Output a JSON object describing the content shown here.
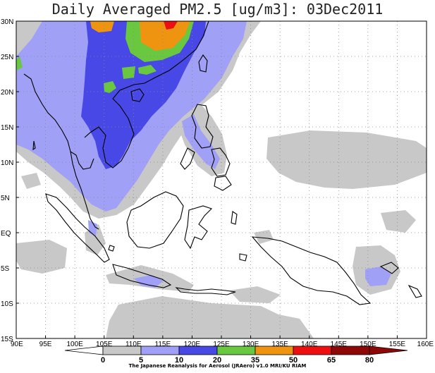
{
  "title": "Daily Averaged PM2.5 [ug/m3]: 03Dec2011",
  "lat_labels": [
    "30N",
    "25N",
    "20N",
    "15N",
    "10N",
    "5N",
    "EQ",
    "5S",
    "10S",
    "15S"
  ],
  "lon_labels": [
    "90E",
    "95E",
    "100E",
    "105E",
    "110E",
    "115E",
    "120E",
    "125E",
    "130E",
    "135E",
    "140E",
    "145E",
    "150E",
    "155E",
    "160E"
  ],
  "colorbar": {
    "levels": [
      "0",
      "5",
      "10",
      "20",
      "35",
      "50",
      "65",
      "80"
    ],
    "colors": [
      "#ffffff",
      "#c8c8c8",
      "#a0a0f6",
      "#4848e6",
      "#6ac840",
      "#ee9410",
      "#ec1010",
      "#8e0808"
    ]
  },
  "credit": "The Japanese Reanalysis for Aerosol (JRAero) v1.0 MRI/KU RIAM"
}
